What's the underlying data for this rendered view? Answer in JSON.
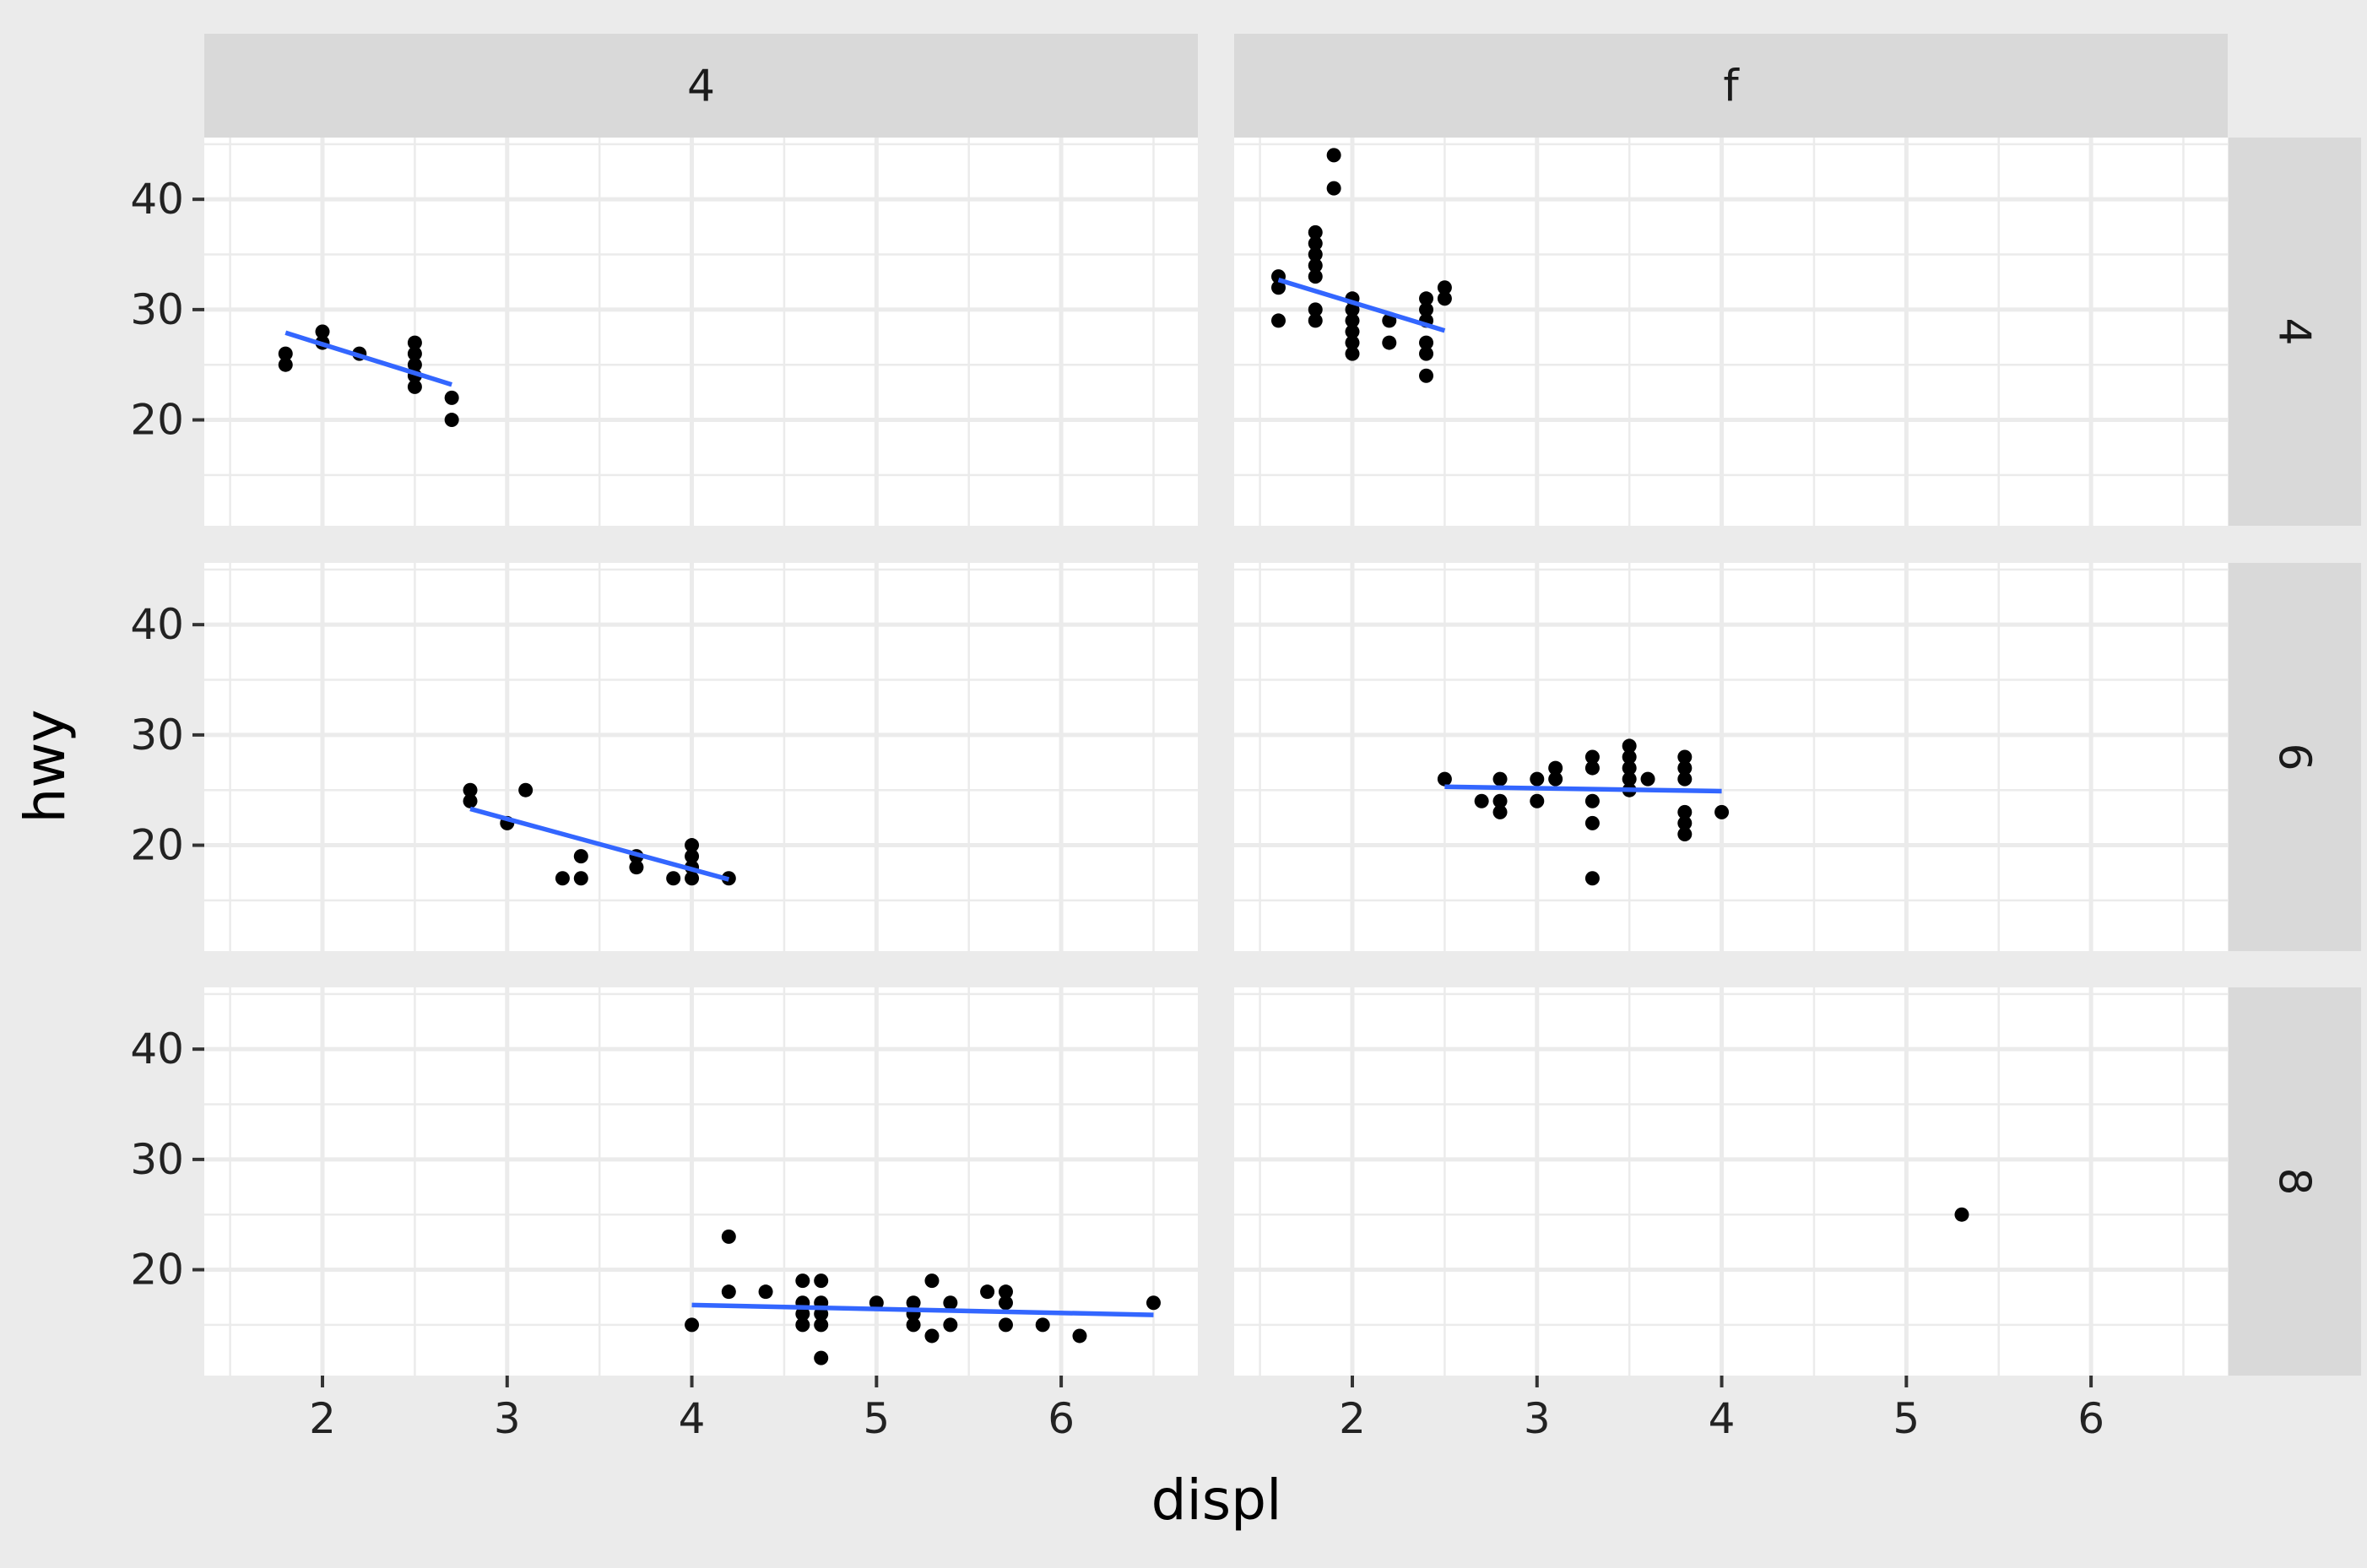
{
  "chart_data": {
    "type": "scatter",
    "title": "",
    "xlabel": "displ",
    "ylabel": "hwy",
    "xlim": [
      1.36,
      6.74
    ],
    "ylim": [
      10.4,
      45.6
    ],
    "x_ticks": [
      "2",
      "3",
      "4",
      "5",
      "6"
    ],
    "y_ticks": [
      "20",
      "30",
      "40"
    ],
    "grid": true,
    "facet_cols": [
      "4",
      "f"
    ],
    "facet_rows": [
      "4",
      "6",
      "8"
    ],
    "colors": {
      "panel_bg": "#ebebeb",
      "panel_fill": "#ffffff",
      "strip_bg": "#d9d9d9",
      "grid": "#ebebeb",
      "points": "#000000",
      "trend": "#3366ff"
    },
    "panels": [
      {
        "col": "4",
        "row": "4",
        "points": [
          [
            1.8,
            26
          ],
          [
            1.8,
            25
          ],
          [
            2.0,
            28
          ],
          [
            2.0,
            27
          ],
          [
            2.2,
            26
          ],
          [
            2.5,
            27
          ],
          [
            2.5,
            26
          ],
          [
            2.5,
            25
          ],
          [
            2.5,
            24
          ],
          [
            2.5,
            23
          ],
          [
            2.7,
            22
          ],
          [
            2.7,
            20
          ]
        ],
        "trend": [
          [
            1.8,
            27.9
          ],
          [
            2.7,
            23.2
          ]
        ]
      },
      {
        "col": "f",
        "row": "4",
        "points": [
          [
            1.6,
            33
          ],
          [
            1.6,
            32
          ],
          [
            1.6,
            29
          ],
          [
            1.8,
            37
          ],
          [
            1.8,
            36
          ],
          [
            1.8,
            35
          ],
          [
            1.8,
            34
          ],
          [
            1.8,
            33
          ],
          [
            1.8,
            30
          ],
          [
            1.8,
            29
          ],
          [
            1.9,
            44
          ],
          [
            1.9,
            41
          ],
          [
            2.0,
            31
          ],
          [
            2.0,
            30
          ],
          [
            2.0,
            29
          ],
          [
            2.0,
            28
          ],
          [
            2.0,
            27
          ],
          [
            2.0,
            26
          ],
          [
            2.2,
            29
          ],
          [
            2.2,
            27
          ],
          [
            2.4,
            31
          ],
          [
            2.4,
            30
          ],
          [
            2.4,
            29
          ],
          [
            2.4,
            27
          ],
          [
            2.4,
            26
          ],
          [
            2.4,
            24
          ],
          [
            2.5,
            32
          ],
          [
            2.5,
            31
          ]
        ],
        "trend": [
          [
            1.6,
            32.7
          ],
          [
            2.5,
            28.1
          ]
        ]
      },
      {
        "col": "4",
        "row": "6",
        "points": [
          [
            2.8,
            25
          ],
          [
            2.8,
            24
          ],
          [
            3.0,
            22
          ],
          [
            3.1,
            25
          ],
          [
            3.3,
            17
          ],
          [
            3.4,
            19
          ],
          [
            3.4,
            17
          ],
          [
            3.7,
            19
          ],
          [
            3.7,
            18
          ],
          [
            3.9,
            17
          ],
          [
            4.0,
            20
          ],
          [
            4.0,
            19
          ],
          [
            4.0,
            18
          ],
          [
            4.0,
            17
          ],
          [
            4.2,
            17
          ]
        ],
        "trend": [
          [
            2.8,
            23.3
          ],
          [
            4.2,
            16.9
          ]
        ]
      },
      {
        "col": "f",
        "row": "6",
        "points": [
          [
            2.5,
            26
          ],
          [
            2.7,
            24
          ],
          [
            2.8,
            26
          ],
          [
            2.8,
            24
          ],
          [
            2.8,
            23
          ],
          [
            3.0,
            26
          ],
          [
            3.0,
            24
          ],
          [
            3.1,
            27
          ],
          [
            3.1,
            26
          ],
          [
            3.3,
            28
          ],
          [
            3.3,
            27
          ],
          [
            3.3,
            24
          ],
          [
            3.3,
            22
          ],
          [
            3.3,
            17
          ],
          [
            3.5,
            29
          ],
          [
            3.5,
            28
          ],
          [
            3.5,
            27
          ],
          [
            3.5,
            26
          ],
          [
            3.5,
            25
          ],
          [
            3.6,
            26
          ],
          [
            3.8,
            28
          ],
          [
            3.8,
            27
          ],
          [
            3.8,
            26
          ],
          [
            3.8,
            23
          ],
          [
            3.8,
            22
          ],
          [
            3.8,
            21
          ],
          [
            4.0,
            23
          ]
        ],
        "trend": [
          [
            2.5,
            25.3
          ],
          [
            4.0,
            24.9
          ]
        ]
      },
      {
        "col": "4",
        "row": "8",
        "points": [
          [
            4.0,
            15
          ],
          [
            4.2,
            23
          ],
          [
            4.2,
            18
          ],
          [
            4.4,
            18
          ],
          [
            4.6,
            19
          ],
          [
            4.6,
            17
          ],
          [
            4.6,
            16
          ],
          [
            4.6,
            15
          ],
          [
            4.7,
            19
          ],
          [
            4.7,
            17
          ],
          [
            4.7,
            16
          ],
          [
            4.7,
            15
          ],
          [
            4.7,
            12
          ],
          [
            5.0,
            17
          ],
          [
            5.2,
            17
          ],
          [
            5.2,
            16
          ],
          [
            5.2,
            15
          ],
          [
            5.3,
            19
          ],
          [
            5.3,
            14
          ],
          [
            5.4,
            17
          ],
          [
            5.4,
            15
          ],
          [
            5.6,
            18
          ],
          [
            5.7,
            18
          ],
          [
            5.7,
            17
          ],
          [
            5.7,
            15
          ],
          [
            5.9,
            15
          ],
          [
            6.1,
            14
          ],
          [
            6.5,
            17
          ]
        ],
        "trend": [
          [
            4.0,
            16.8
          ],
          [
            6.5,
            15.9
          ]
        ]
      },
      {
        "col": "f",
        "row": "8",
        "points": [
          [
            5.3,
            25
          ]
        ],
        "trend": []
      }
    ]
  }
}
